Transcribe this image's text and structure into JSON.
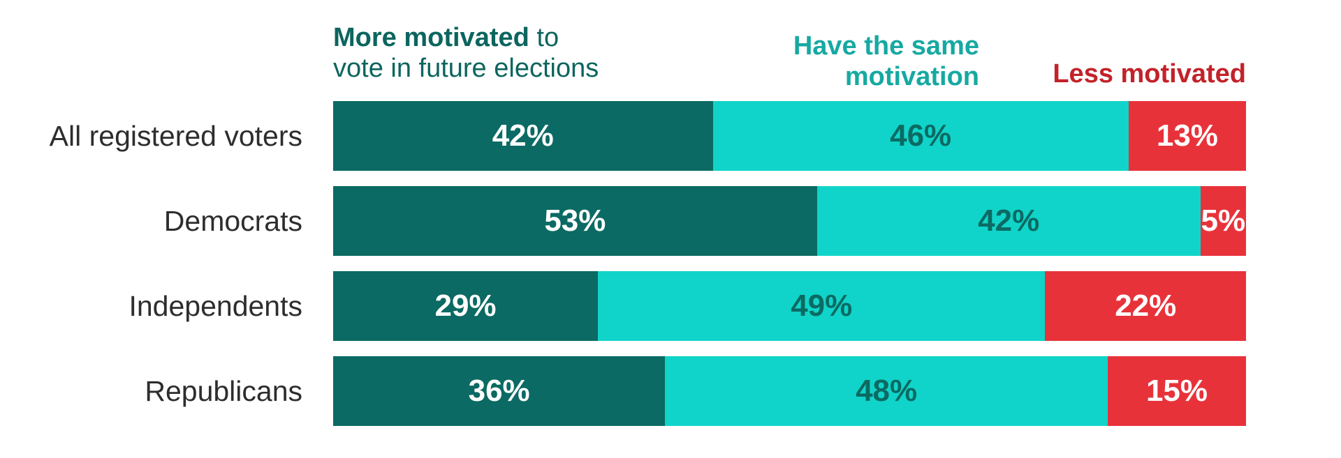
{
  "chart_data": {
    "type": "bar",
    "orientation": "horizontal-stacked",
    "title": "",
    "value_suffix": "%",
    "categories": [
      "All registered voters",
      "Democrats",
      "Independents",
      "Republicans"
    ],
    "series": [
      {
        "name": "More motivated to vote in future elections",
        "color": "#0b6a63",
        "label_color": "#ffffff",
        "values": [
          42,
          53,
          29,
          36
        ]
      },
      {
        "name": "Have the same motivation",
        "color": "#10d4c9",
        "label_color": "#0b6a63",
        "values": [
          46,
          42,
          49,
          48
        ]
      },
      {
        "name": "Less motivated",
        "color": "#e8323a",
        "label_color": "#ffffff",
        "values": [
          13,
          5,
          22,
          15
        ]
      }
    ],
    "legend_position": "top",
    "grid": false
  },
  "legend": {
    "more": {
      "bold": "More motivated",
      "rest": " to",
      "line2": "vote in future elections",
      "color": "#0c655e"
    },
    "same": {
      "line1": "Have the same",
      "line2": "motivation",
      "color": "#16a9a2"
    },
    "less": {
      "label": "Less motivated",
      "color": "#c3222a"
    }
  },
  "colors": {
    "row_label_text": "#2d2d2d",
    "background": "#ffffff"
  }
}
